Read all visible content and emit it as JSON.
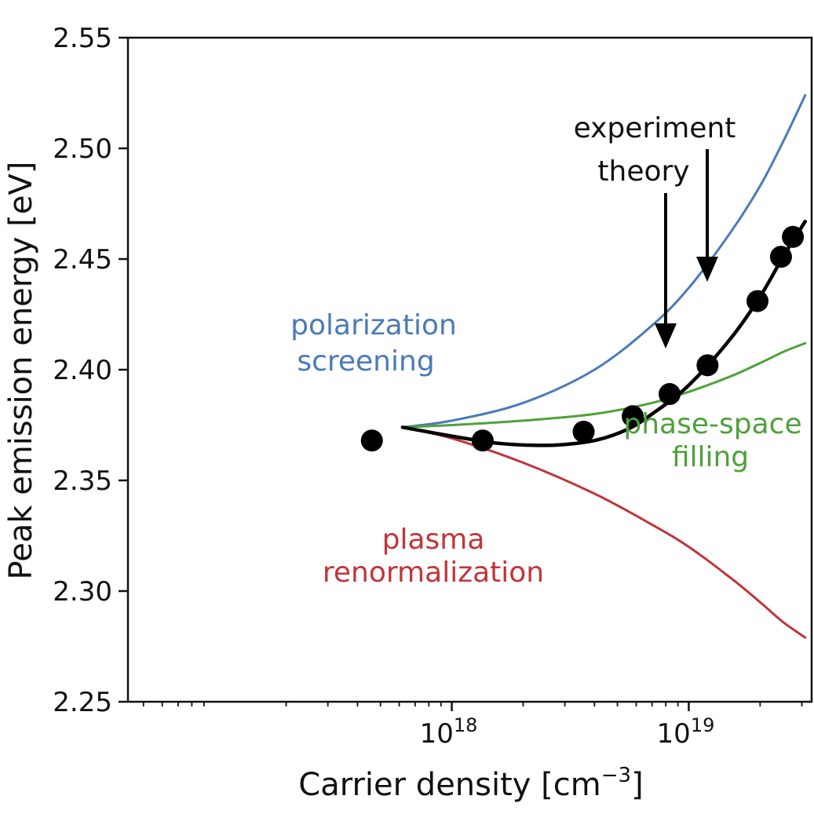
{
  "chart_data": {
    "type": "line",
    "xlabel": "Carrier density [cm",
    "xlabel_exponent": "−3",
    "xlabel_close": "]",
    "ylabel": "Peak emission energy [eV]",
    "x_scale": "log",
    "xlim": [
      4.3e+16,
      3.3e+19
    ],
    "ylim": [
      2.25,
      2.55
    ],
    "grid": false,
    "x_ticks": [
      {
        "value": 1e+18,
        "base": "10",
        "exp": "18"
      },
      {
        "value": 1e+19,
        "base": "10",
        "exp": "19"
      }
    ],
    "y_ticks": [
      {
        "value": 2.25,
        "label": "2.25"
      },
      {
        "value": 2.3,
        "label": "2.30"
      },
      {
        "value": 2.35,
        "label": "2.35"
      },
      {
        "value": 2.4,
        "label": "2.40"
      },
      {
        "value": 2.45,
        "label": "2.45"
      },
      {
        "value": 2.5,
        "label": "2.50"
      },
      {
        "value": 2.55,
        "label": "2.55"
      }
    ],
    "series": [
      {
        "key": "polarization",
        "color": "#4a7ab8",
        "x": [
          6.2e+17,
          1e+18,
          2e+18,
          4e+18,
          7e+18,
          1e+19,
          1.5e+19,
          2e+19,
          2.5e+19,
          3.1e+19
        ],
        "y": [
          2.374,
          2.377,
          2.385,
          2.4,
          2.42,
          2.437,
          2.462,
          2.483,
          2.503,
          2.524
        ]
      },
      {
        "key": "phase-space",
        "color": "#4ea13a",
        "x": [
          6.2e+17,
          1e+18,
          2e+18,
          4e+18,
          7e+18,
          1e+19,
          1.5e+19,
          2e+19,
          2.5e+19,
          3.1e+19
        ],
        "y": [
          2.374,
          2.375,
          2.377,
          2.38,
          2.385,
          2.39,
          2.397,
          2.403,
          2.408,
          2.412
        ]
      },
      {
        "key": "plasma",
        "color": "#c0353a",
        "x": [
          6.2e+17,
          1e+18,
          2e+18,
          4e+18,
          7e+18,
          1e+19,
          1.5e+19,
          2e+19,
          2.5e+19,
          3.1e+19
        ],
        "y": [
          2.374,
          2.369,
          2.358,
          2.344,
          2.33,
          2.32,
          2.306,
          2.295,
          2.286,
          2.279
        ]
      },
      {
        "key": "theory",
        "color": "#000000",
        "x": [
          6.2e+17,
          1e+18,
          1.5e+18,
          2e+18,
          2.8e+18,
          4e+18,
          5.5e+18,
          7e+18,
          1e+19,
          1.5e+19,
          2e+19,
          2.5e+19,
          3.1e+19
        ],
        "y": [
          2.374,
          2.37,
          2.367,
          2.366,
          2.366,
          2.368,
          2.373,
          2.38,
          2.393,
          2.414,
          2.433,
          2.451,
          2.467
        ]
      }
    ],
    "experiment": {
      "color": "#000000",
      "x": [
        4.6e+17,
        1.35e+18,
        3.6e+18,
        5.8e+18,
        8.3e+18,
        1.2e+19,
        1.95e+19,
        2.45e+19,
        2.75e+19
      ],
      "y": [
        2.368,
        2.368,
        2.372,
        2.379,
        2.389,
        2.402,
        2.431,
        2.451,
        2.46
      ]
    },
    "annotations": {
      "polarization": {
        "lines": [
          "polarization",
          "screening"
        ],
        "color": "#4a7ab8"
      },
      "phase_space": {
        "lines": [
          "phase-space",
          "filling"
        ],
        "color": "#4ea13a"
      },
      "plasma": {
        "lines": [
          "plasma",
          "renormalization"
        ],
        "color": "#c0353a"
      },
      "experiment": {
        "text": "experiment",
        "color": "#111111"
      },
      "theory": {
        "text": "theory",
        "color": "#111111"
      }
    }
  }
}
